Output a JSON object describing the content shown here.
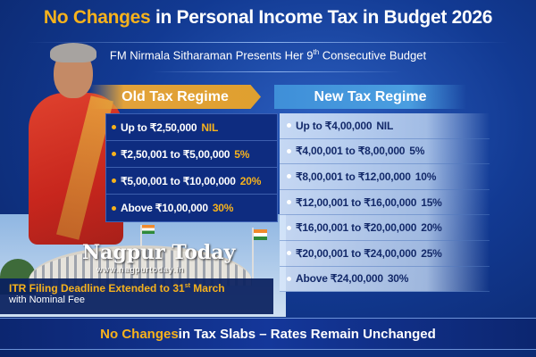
{
  "header": {
    "title_highlight": "No Changes",
    "title_rest": " in Personal Income Tax in Budget 2026",
    "subtitle_pre": "FM Nirmala Sitharaman Presents Her 9",
    "subtitle_sup": "th",
    "subtitle_post": " Consecutive Budget"
  },
  "old_regime": {
    "label": "Old Tax Regime",
    "slabs": [
      {
        "range": "Up to ₹2,50,000",
        "rate": "NIL"
      },
      {
        "range": "₹2,50,001 to ₹5,00,000",
        "rate": "5%"
      },
      {
        "range": "₹5,00,001 to ₹10,00,000",
        "rate": "20%"
      },
      {
        "range": "Above ₹10,00,000",
        "rate": "30%"
      }
    ]
  },
  "new_regime": {
    "label": "New Tax Regime",
    "slabs": [
      {
        "range": "Up to ₹4,00,000",
        "rate": "NIL"
      },
      {
        "range": "₹4,00,001 to ₹8,00,000",
        "rate": "5%"
      },
      {
        "range": "₹8,00,001 to ₹12,00,000",
        "rate": "10%"
      },
      {
        "range": "₹12,00,001 to ₹16,00,000",
        "rate": "15%"
      },
      {
        "range": "₹16,00,001 to ₹20,00,000",
        "rate": "20%"
      },
      {
        "range": "₹20,00,001 to ₹24,00,000",
        "rate": "25%"
      },
      {
        "range": "Above ₹24,00,000",
        "rate": "30%"
      }
    ]
  },
  "itr": {
    "line1_pre": "ITR Filing Deadline Extended to 31",
    "line1_sup": "st",
    "line1_post": " March",
    "line2": "with Nominal Fee"
  },
  "footer": {
    "highlight": "No Changes",
    "rest": " in Tax Slabs – Rates Remain Unchanged"
  },
  "watermark": {
    "name": "Nagpur Today",
    "url": "www.nagpurtoday.in"
  },
  "colors": {
    "accent": "#f7b21c",
    "background": "#123a93",
    "old_header": "#e2a23a",
    "new_header": "#4a9ee0"
  }
}
